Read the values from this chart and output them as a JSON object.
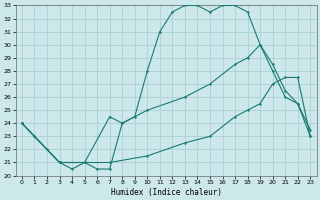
{
  "xlabel": "Humidex (Indice chaleur)",
  "bg_color": "#cde8ea",
  "grid_color": "#b0d4d6",
  "line_color": "#1a7a6e",
  "xlim": [
    -0.5,
    23.5
  ],
  "ylim": [
    20,
    33
  ],
  "xticks": [
    0,
    1,
    2,
    3,
    4,
    5,
    6,
    7,
    8,
    9,
    10,
    11,
    12,
    13,
    14,
    15,
    16,
    17,
    18,
    19,
    20,
    21,
    22,
    23
  ],
  "yticks": [
    20,
    21,
    22,
    23,
    24,
    25,
    26,
    27,
    28,
    29,
    30,
    31,
    32,
    33
  ],
  "line1_x": [
    0,
    1,
    2,
    3,
    4,
    5,
    6,
    7,
    8,
    9,
    10,
    11,
    12,
    13,
    14,
    15,
    16,
    17,
    18,
    19,
    20,
    21,
    22,
    23
  ],
  "line1_y": [
    24,
    23,
    22,
    21,
    20.5,
    21,
    20.5,
    20.5,
    24,
    24.5,
    28,
    31,
    32.5,
    33,
    33,
    32.5,
    33,
    33,
    32.5,
    30,
    28,
    26,
    25.5,
    23
  ],
  "line2_x": [
    0,
    1,
    3,
    5,
    7,
    8,
    10,
    13,
    15,
    17,
    18,
    19,
    20,
    21,
    22,
    23
  ],
  "line2_y": [
    24,
    23,
    21,
    21,
    24.5,
    24,
    25,
    26,
    27,
    28.5,
    29,
    30,
    28.5,
    26.5,
    25.5,
    23.5
  ],
  "line3_x": [
    0,
    3,
    7,
    10,
    13,
    15,
    17,
    18,
    19,
    20,
    21,
    22,
    23
  ],
  "line3_y": [
    24,
    21,
    21,
    21.5,
    22.5,
    23,
    24.5,
    25,
    25.5,
    27,
    27.5,
    27.5,
    23
  ]
}
